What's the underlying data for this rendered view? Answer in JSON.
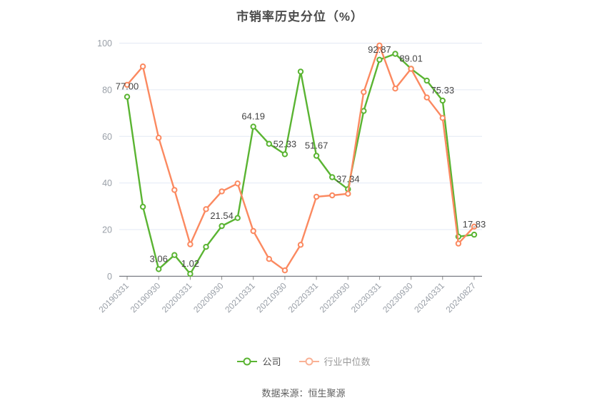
{
  "title": "市销率历史分位（%）",
  "footer": "数据来源：恒生聚源",
  "legend": [
    {
      "label": "公司",
      "color": "#5AB432",
      "text_color": "#4A4A4A"
    },
    {
      "label": "行业中位数",
      "color": "#F9B195",
      "text_color": "#999999"
    }
  ],
  "colors": {
    "company_line": "#5AB432",
    "industry_line": "#FB8960",
    "grid_line": "#E3E9F4",
    "axis_line": "#5B6069",
    "axis_text": "#999FA7",
    "data_label_text": "#454545"
  },
  "chart_data": {
    "type": "line",
    "title": "市销率历史分位（%）",
    "ylim": [
      0,
      100
    ],
    "y_ticks": [
      0,
      20,
      40,
      60,
      80,
      100
    ],
    "grid": true,
    "legend_position": "bottom",
    "categories": [
      "20190331",
      "",
      "20190930",
      "",
      "20200331",
      "",
      "20200930",
      "",
      "20210331",
      "",
      "20210930",
      "",
      "20220331",
      "",
      "20220930",
      "",
      "20230331",
      "",
      "20230930",
      "",
      "20240331",
      "",
      "20240827"
    ],
    "series": [
      {
        "name": "公司",
        "id": "company",
        "color": "#5AB432",
        "values": [
          77.0,
          29.8,
          3.06,
          9.1,
          1.02,
          12.6,
          21.54,
          25.0,
          64.19,
          56.8,
          52.33,
          87.8,
          51.67,
          42.5,
          37.34,
          70.9,
          92.87,
          95.4,
          89.01,
          83.9,
          75.33,
          17.0,
          17.83
        ],
        "point_labels": [
          {
            "index": 0,
            "text": "77.00"
          },
          {
            "index": 2,
            "text": "3.06"
          },
          {
            "index": 4,
            "text": "1.02"
          },
          {
            "index": 6,
            "text": "21.54"
          },
          {
            "index": 8,
            "text": "64.19"
          },
          {
            "index": 10,
            "text": "52.33"
          },
          {
            "index": 12,
            "text": "51.67"
          },
          {
            "index": 14,
            "text": "37.34"
          },
          {
            "index": 16,
            "text": "92.87"
          },
          {
            "index": 18,
            "text": "89.01"
          },
          {
            "index": 20,
            "text": "75.33"
          },
          {
            "index": 22,
            "text": "17.83"
          }
        ]
      },
      {
        "name": "行业中位数",
        "id": "industry-median",
        "color": "#FB8960",
        "values": [
          82.1,
          90.0,
          59.4,
          37.0,
          13.7,
          28.8,
          36.4,
          39.8,
          19.4,
          7.4,
          2.5,
          13.5,
          34.1,
          34.7,
          35.4,
          79.0,
          99.0,
          80.5,
          89.0,
          76.7,
          67.9,
          14.0,
          21.3
        ],
        "point_labels": []
      }
    ]
  }
}
